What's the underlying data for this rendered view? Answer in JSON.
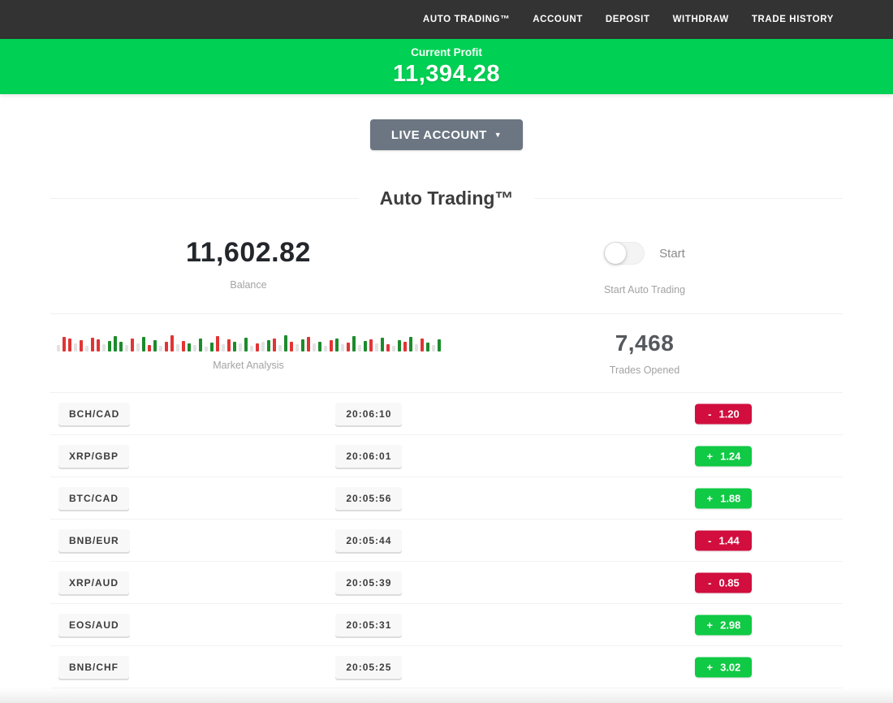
{
  "nav": {
    "items": [
      "AUTO TRADING™",
      "ACCOUNT",
      "DEPOSIT",
      "WITHDRAW",
      "TRADE HISTORY"
    ]
  },
  "profit_banner": {
    "label": "Current Profit",
    "value": "11,394.28",
    "background": "#00d053"
  },
  "account_selector": {
    "label": "LIVE ACCOUNT",
    "caret": "▼"
  },
  "section": {
    "title": "Auto Trading™"
  },
  "stats": {
    "balance": {
      "value": "11,602.82",
      "label": "Balance"
    },
    "auto_trading": {
      "toggle_label": "Start",
      "toggle_state": "off",
      "label": "Start Auto Trading"
    },
    "market_analysis": {
      "label": "Market Analysis"
    },
    "trades_opened": {
      "value": "7,468",
      "label": "Trades Opened"
    }
  },
  "colors": {
    "nav_bg": "#333333",
    "banner_green": "#00d053",
    "badge_win": "#10c944",
    "badge_loss": "#d10e3e",
    "button_gray": "#6b7682",
    "bar_up": "#1d8b2c",
    "bar_down": "#e23434",
    "bar_neutral": "#e2e2e2"
  },
  "market_bars": [
    [
      "n",
      8
    ],
    [
      "r",
      18
    ],
    [
      "r",
      16
    ],
    [
      "n",
      10
    ],
    [
      "r",
      14
    ],
    [
      "n",
      7
    ],
    [
      "r",
      17
    ],
    [
      "r",
      15
    ],
    [
      "n",
      9
    ],
    [
      "g",
      13
    ],
    [
      "g",
      19
    ],
    [
      "g",
      12
    ],
    [
      "n",
      8
    ],
    [
      "r",
      16
    ],
    [
      "n",
      10
    ],
    [
      "g",
      18
    ],
    [
      "r",
      8
    ],
    [
      "g",
      14
    ],
    [
      "n",
      7
    ],
    [
      "r",
      12
    ],
    [
      "r",
      20
    ],
    [
      "n",
      9
    ],
    [
      "r",
      13
    ],
    [
      "g",
      10
    ],
    [
      "n",
      8
    ],
    [
      "g",
      16
    ],
    [
      "n",
      6
    ],
    [
      "g",
      11
    ],
    [
      "r",
      19
    ],
    [
      "n",
      9
    ],
    [
      "r",
      15
    ],
    [
      "g",
      12
    ],
    [
      "n",
      10
    ],
    [
      "g",
      17
    ],
    [
      "n",
      7
    ],
    [
      "r",
      10
    ],
    [
      "n",
      12
    ],
    [
      "g",
      14
    ],
    [
      "r",
      16
    ],
    [
      "n",
      8
    ],
    [
      "g",
      20
    ],
    [
      "r",
      12
    ],
    [
      "n",
      9
    ],
    [
      "g",
      15
    ],
    [
      "r",
      18
    ],
    [
      "n",
      10
    ],
    [
      "g",
      12
    ],
    [
      "n",
      7
    ],
    [
      "r",
      14
    ],
    [
      "g",
      16
    ],
    [
      "n",
      9
    ],
    [
      "r",
      11
    ],
    [
      "g",
      19
    ],
    [
      "n",
      8
    ],
    [
      "g",
      13
    ],
    [
      "r",
      15
    ],
    [
      "n",
      10
    ],
    [
      "g",
      17
    ],
    [
      "r",
      9
    ],
    [
      "n",
      7
    ],
    [
      "g",
      14
    ],
    [
      "r",
      12
    ],
    [
      "g",
      18
    ],
    [
      "n",
      9
    ],
    [
      "r",
      16
    ],
    [
      "g",
      11
    ],
    [
      "n",
      8
    ],
    [
      "g",
      15
    ]
  ],
  "trades": [
    {
      "pair": "BCH/CAD",
      "time": "20:06:10",
      "sign": "-",
      "value": "1.20",
      "direction": "loss"
    },
    {
      "pair": "XRP/GBP",
      "time": "20:06:01",
      "sign": "+",
      "value": "1.24",
      "direction": "win"
    },
    {
      "pair": "BTC/CAD",
      "time": "20:05:56",
      "sign": "+",
      "value": "1.88",
      "direction": "win"
    },
    {
      "pair": "BNB/EUR",
      "time": "20:05:44",
      "sign": "-",
      "value": "1.44",
      "direction": "loss"
    },
    {
      "pair": "XRP/AUD",
      "time": "20:05:39",
      "sign": "-",
      "value": "0.85",
      "direction": "loss"
    },
    {
      "pair": "EOS/AUD",
      "time": "20:05:31",
      "sign": "+",
      "value": "2.98",
      "direction": "win"
    },
    {
      "pair": "BNB/CHF",
      "time": "20:05:25",
      "sign": "+",
      "value": "3.02",
      "direction": "win"
    }
  ]
}
